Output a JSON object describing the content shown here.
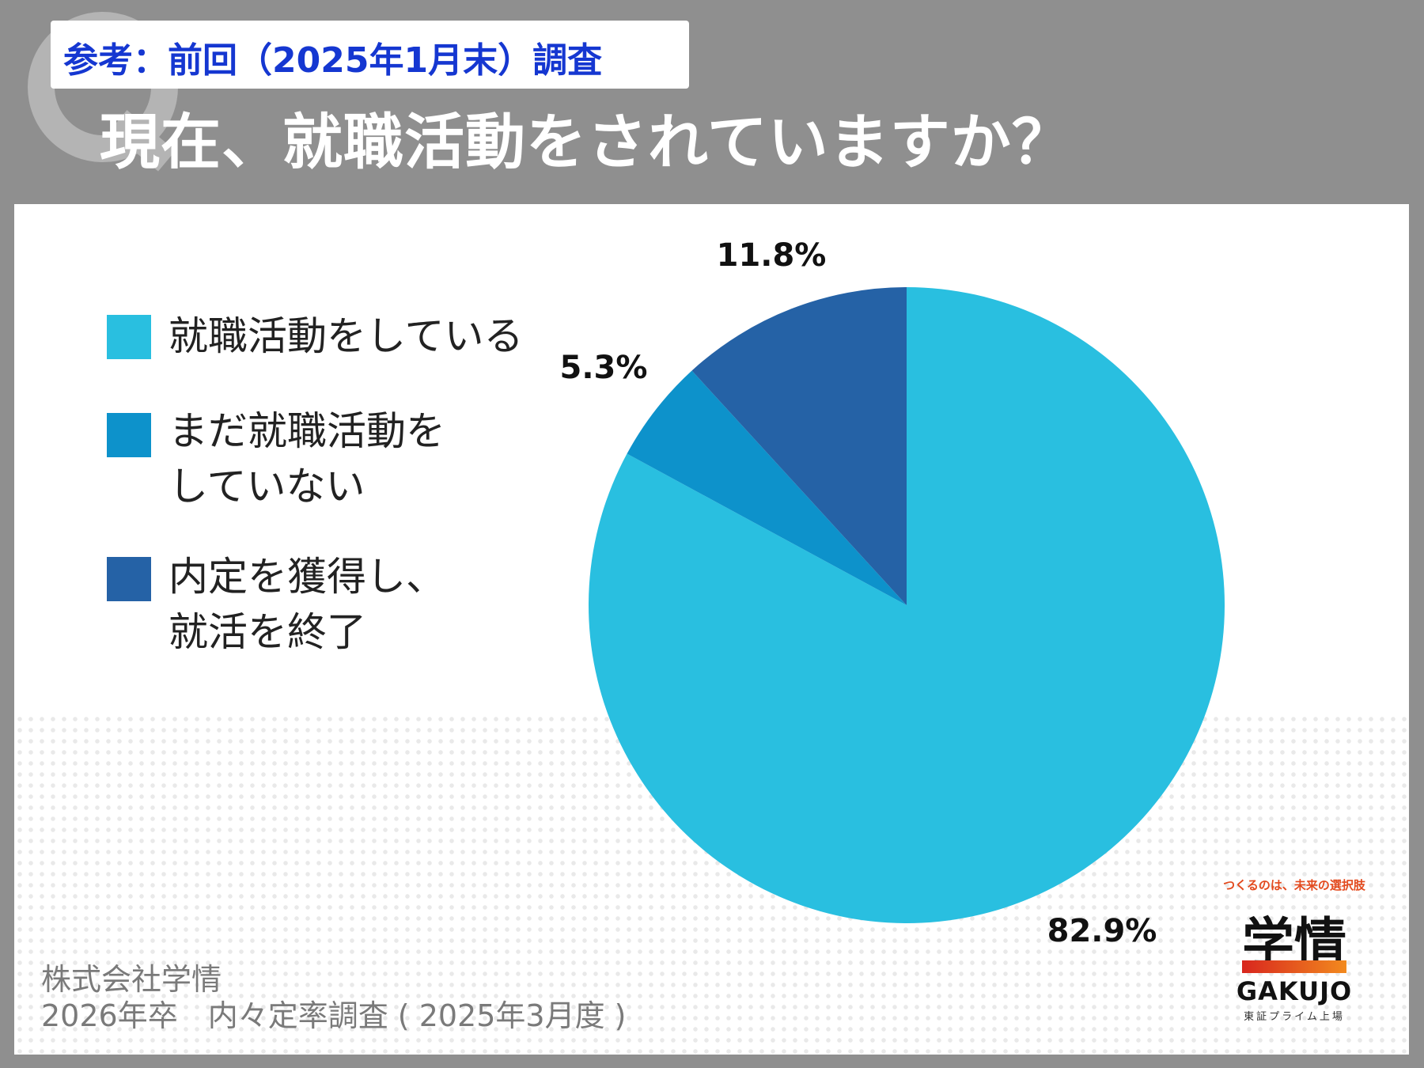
{
  "header": {
    "reference_label": "参考：前回（2025年1月末）調査",
    "question": "現在、就職活動をされていますか？"
  },
  "legend": [
    {
      "label_lines": [
        "就職活動をしている"
      ],
      "color": "#29bfe0"
    },
    {
      "label_lines": [
        "まだ就職活動を",
        "していない"
      ],
      "color": "#0d92cb"
    },
    {
      "label_lines": [
        "内定を獲得し、",
        "就活を終了"
      ],
      "color": "#2562a6"
    }
  ],
  "chart_data": {
    "type": "pie",
    "start_angle_deg": 0,
    "direction": "clockwise",
    "slices": [
      {
        "label": "就職活動をしている",
        "value": 82.9,
        "display": "82.9%",
        "color": "#29bfe0"
      },
      {
        "label": "まだ就職活動をしていない",
        "value": 5.3,
        "display": "5.3%",
        "color": "#0d92cb"
      },
      {
        "label": "内定を獲得し、就活を終了",
        "value": 11.8,
        "display": "11.8%",
        "color": "#2562a6"
      }
    ]
  },
  "footer": {
    "company": "株式会社学情",
    "survey": "2026年卒　内々定率調査 ( 2025年3月度 )"
  },
  "logo": {
    "tagline": "つくるのは、未来の選択肢",
    "name": "学情",
    "english": "GAKUJO",
    "listing": "東証プライム上場"
  }
}
